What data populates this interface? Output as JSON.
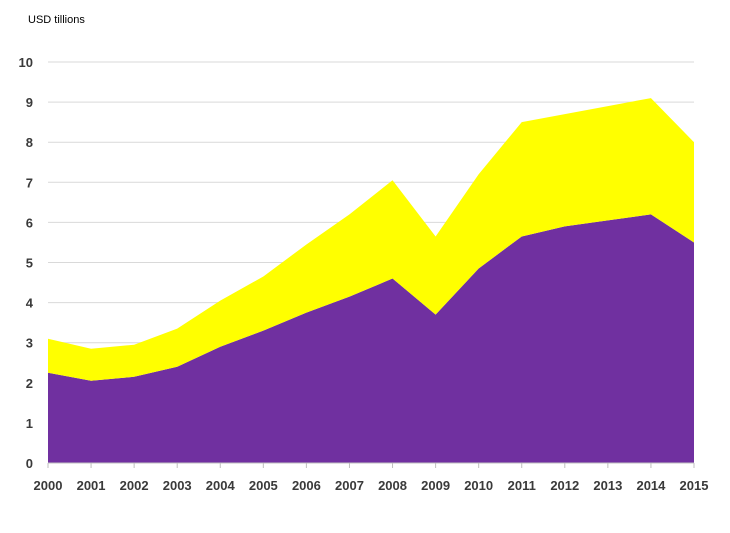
{
  "chart_data": {
    "type": "area",
    "stacked": true,
    "title": "",
    "unit_label": "USD tillions",
    "xlabel": "",
    "ylabel": "",
    "x": [
      "2000",
      "2001",
      "2002",
      "2003",
      "2004",
      "2005",
      "2006",
      "2007",
      "2008",
      "2009",
      "2010",
      "2011",
      "2012",
      "2013",
      "2014",
      "2015"
    ],
    "ylim": [
      0,
      10
    ],
    "yticks": [
      0,
      1,
      2,
      3,
      4,
      5,
      6,
      7,
      8,
      9,
      10
    ],
    "grid": true,
    "legend": "none",
    "series": [
      {
        "color": "#7030a0",
        "values": [
          2.25,
          2.05,
          2.15,
          2.4,
          2.9,
          3.3,
          3.75,
          4.15,
          4.6,
          3.7,
          4.85,
          5.65,
          5.9,
          6.05,
          6.2,
          5.5
        ]
      },
      {
        "color": "#ffff00",
        "values": [
          0.85,
          0.8,
          0.8,
          0.95,
          1.15,
          1.35,
          1.7,
          2.05,
          2.45,
          1.95,
          2.35,
          2.85,
          2.8,
          2.85,
          2.9,
          2.5
        ]
      }
    ]
  }
}
